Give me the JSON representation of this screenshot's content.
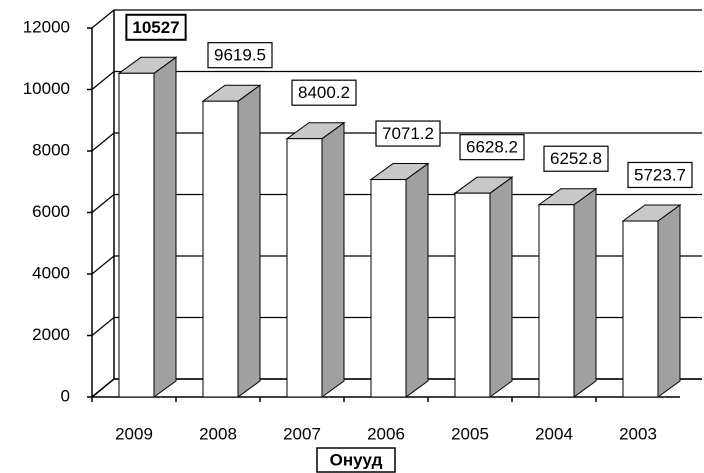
{
  "chart_data": {
    "type": "bar3d",
    "x_label": "Онууд",
    "categories": [
      "2009",
      "2008",
      "2007",
      "2006",
      "2005",
      "2004",
      "2003"
    ],
    "values": [
      10527,
      9619.5,
      8400.2,
      7071.2,
      6628.2,
      6252.8,
      5723.7
    ],
    "ylim": [
      0,
      12000
    ],
    "yticks": [
      0,
      2000,
      4000,
      6000,
      8000,
      10000,
      12000
    ],
    "grid": true,
    "color": "#ffffff",
    "side_color": "#a0a0a0",
    "top_color": "#c8c8c8"
  }
}
